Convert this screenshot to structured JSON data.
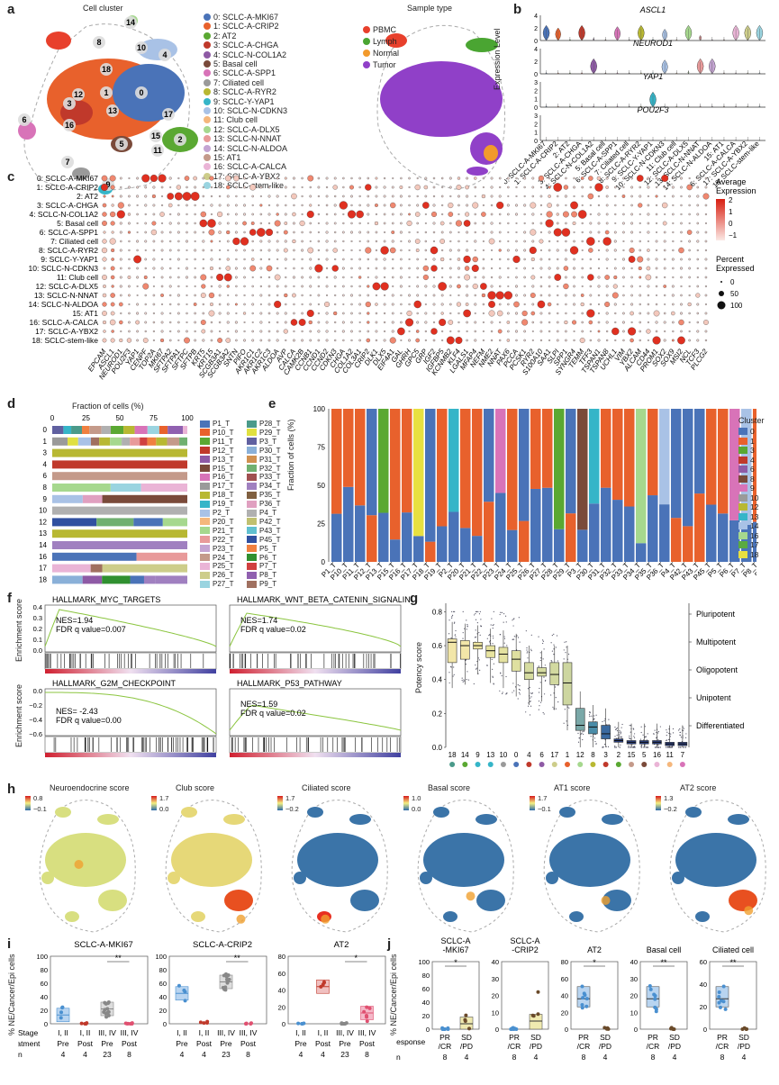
{
  "panels": {
    "a": {
      "letter": "a",
      "title_cluster": "Cell cluster",
      "title_sample": "Sample type",
      "clusters": [
        {
          "label": "0: SCLC-A-MKI67",
          "color": "#4a73b8"
        },
        {
          "label": "1: SCLC-A-CRIP2",
          "color": "#e8612c"
        },
        {
          "label": "2: AT2",
          "color": "#5aa832"
        },
        {
          "label": "3: SCLC-A-CHGA",
          "color": "#c0392b"
        },
        {
          "label": "4: SCLC-N-COL1A2",
          "color": "#8e5aa5"
        },
        {
          "label": "5: Basal cell",
          "color": "#7a4a3a"
        },
        {
          "label": "6: SCLC-A-SPP1",
          "color": "#d873b8"
        },
        {
          "label": "7: Ciliated cell",
          "color": "#9a9a9a"
        },
        {
          "label": "8: SCLC-A-RYR2",
          "color": "#b8b832"
        },
        {
          "label": "9: SCLC-Y-YAP1",
          "color": "#35b5c8"
        },
        {
          "label": "10: SCLC-N-CDKN3",
          "color": "#a9c2e6"
        },
        {
          "label": "11: Club cell",
          "color": "#f5b77c"
        },
        {
          "label": "12: SCLC-A-DLX5",
          "color": "#a6d88e"
        },
        {
          "label": "13: SCLC-N-NNAT",
          "color": "#e89a9a"
        },
        {
          "label": "14: SCLC-N-ALDOA",
          "color": "#c4a4d2"
        },
        {
          "label": "15: AT1",
          "color": "#c49a8a"
        },
        {
          "label": "16: SCLC-A-CALCA",
          "color": "#eab4d6"
        },
        {
          "label": "17: SCLC-A-YBX2",
          "color": "#cdcd8a"
        },
        {
          "label": "18: SCLC-stem-like",
          "color": "#9ad4e0"
        }
      ],
      "sample_types": [
        {
          "label": "PBMC",
          "color": "#e8402c"
        },
        {
          "label": "Lymph",
          "color": "#4aa532"
        },
        {
          "label": "Normal",
          "color": "#f29a2c"
        },
        {
          "label": "Tumor",
          "color": "#9040c8"
        }
      ],
      "umap_numbers": [
        "14",
        "8",
        "10",
        "4",
        "18",
        "1",
        "0",
        "3",
        "12",
        "16",
        "13",
        "17",
        "6",
        "15",
        "2",
        "11",
        "5",
        "7",
        "9"
      ]
    },
    "b": {
      "letter": "b",
      "ylabel": "Expression Level",
      "genes": [
        "ASCL1",
        "NEUROD1",
        "YAP1",
        "POU2F3"
      ],
      "categories": [
        "0: SCLC-A-MKI67",
        "1: SCLC-A-CRIP2",
        "2: AT2",
        "3: SCLC-A-CHGA",
        "4: SCLC-N-COL1A2",
        "5: Basal cell",
        "6: SCLC-A-SPP1",
        "7: Ciliated cell",
        "8: SCLC-A-RYR2",
        "9: SCLC-Y-YAP1",
        "10: SCLC-N-CDKN3",
        "11: Club cell",
        "12: SCLC-A-DLX5",
        "13: SCLC-N-NNAT",
        "14: SCLC-N-ALDOA",
        "15: AT1",
        "16: SCLC-A-CALCA",
        "17: SCLC-A-YBX2",
        "18: SCLC-stem-like"
      ],
      "ticks": [
        [
          "0",
          "2",
          "4"
        ],
        [
          "0",
          "2",
          "4"
        ],
        [
          "0",
          "1",
          "2",
          "3"
        ],
        [
          "0",
          "1",
          "2",
          "3"
        ]
      ]
    },
    "c": {
      "letter": "c",
      "rows": [
        "0: SCLC-A-MKI67",
        "1: SCLC-A-CRIP2",
        "2: AT2",
        "3: SCLC-A-CHGA",
        "4: SCLC-N-COL1A2",
        "5: Basal cell",
        "6: SCLC-A-SPP1",
        "7: Ciliated cell",
        "8: SCLC-A-RYR2",
        "9: SCLC-Y-YAP1",
        "10: SCLC-N-CDKN3",
        "11: Club cell",
        "12: SCLC-A-DLX5",
        "13: SCLC-N-NNAT",
        "14: SCLC-N-ALDOA",
        "15: AT1",
        "16: SCLC-A-CALCA",
        "17: SCLC-A-YBX2",
        "18: SCLC-stem-like"
      ],
      "genes": [
        "EPCAM",
        "ASCL1",
        "NEUROD1",
        "POU2F3",
        "YAP1",
        "CENPF",
        "TOP2A",
        "MKI67",
        "SFTPA2",
        "SFTPA1",
        "SFTPC",
        "SFTPB",
        "KRT5",
        "KRT15",
        "SCGB3A1",
        "SCGB3A2",
        "SNTN",
        "PIFO",
        "AKR1C1",
        "AKR1C2",
        "AKR1C3",
        "ALDOA",
        "AVP",
        "CALCA",
        "CAMK2B",
        "CCNB1",
        "CCND1",
        "CCND2",
        "CDKN3",
        "CHGA",
        "COL1A2",
        "COL3A1",
        "CRIP2",
        "DLK1",
        "DLX5",
        "EIF4A1",
        "GAL",
        "GHRH",
        "GPC5",
        "GRP",
        "IGF2",
        "IGFBP5",
        "KCNMB2",
        "KLF4",
        "LGALS1",
        "MFAP4",
        "NEFM",
        "NME2",
        "NNAT",
        "PAX6",
        "PCCA",
        "PCSK1",
        "RYR2",
        "S100A10",
        "SAA1",
        "SLPI",
        "SPP1",
        "SYNGR4",
        "TEMM",
        "TFF3",
        "TSPAN1",
        "TSPAN8",
        "UCHL1",
        "VIM",
        "YBX2",
        "ALCAM",
        "CD44",
        "PROM1",
        "SOX2",
        "SOX9",
        "MSI2",
        "NCL",
        "TCF3",
        "PLCG2"
      ],
      "legend_title_avg": "Average\nExpression",
      "avg_ticks": [
        "2",
        "1",
        "0",
        "−1"
      ],
      "legend_title_pct": "Percent\nExpressed",
      "pct_ticks": [
        "0",
        "50",
        "100"
      ]
    },
    "d": {
      "letter": "d",
      "title": "Fraction of cells (%)",
      "xticks": [
        "0",
        "25",
        "50",
        "75",
        "100"
      ],
      "rows": [
        "0",
        "1",
        "3",
        "4",
        "6",
        "8",
        "9",
        "10",
        "12",
        "13",
        "14",
        "16",
        "17",
        "18"
      ],
      "legend": [
        {
          "label": "P1_T",
          "color": "#4a73b8"
        },
        {
          "label": "P10_T",
          "color": "#e8612c"
        },
        {
          "label": "P11_T",
          "color": "#5aa832"
        },
        {
          "label": "P12_T",
          "color": "#c0392b"
        },
        {
          "label": "P13_T",
          "color": "#8e5aa5"
        },
        {
          "label": "P15_T",
          "color": "#7a4a3a"
        },
        {
          "label": "P16_T",
          "color": "#d873b8"
        },
        {
          "label": "P17_T",
          "color": "#9a9a9a"
        },
        {
          "label": "P18_T",
          "color": "#b8b832"
        },
        {
          "label": "P19_T",
          "color": "#35b5c8"
        },
        {
          "label": "P2_T",
          "color": "#a9c2e6"
        },
        {
          "label": "P20_T",
          "color": "#f5b77c"
        },
        {
          "label": "P21_T",
          "color": "#a6d88e"
        },
        {
          "label": "P22_T",
          "color": "#e89a9a"
        },
        {
          "label": "P23_T",
          "color": "#c4a4d2"
        },
        {
          "label": "P24_T",
          "color": "#c49a8a"
        },
        {
          "label": "P25_T",
          "color": "#eab4d6"
        },
        {
          "label": "P26_T",
          "color": "#cdcd8a"
        },
        {
          "label": "P27_T",
          "color": "#9ad4e0"
        },
        {
          "label": "P28_T",
          "color": "#4a9a8a"
        },
        {
          "label": "P29_T",
          "color": "#e0e040"
        },
        {
          "label": "P3_T",
          "color": "#6060a0"
        },
        {
          "label": "P30_T",
          "color": "#8ab0d8"
        },
        {
          "label": "P31_T",
          "color": "#d09050"
        },
        {
          "label": "P32_T",
          "color": "#70b070"
        },
        {
          "label": "P33_T",
          "color": "#a05050"
        },
        {
          "label": "P34_T",
          "color": "#a080c0"
        },
        {
          "label": "P35_T",
          "color": "#806040"
        },
        {
          "label": "P36_T",
          "color": "#e0a0c0"
        },
        {
          "label": "P4_T",
          "color": "#b0b0b0"
        },
        {
          "label": "P42_T",
          "color": "#c0c070"
        },
        {
          "label": "P43_T",
          "color": "#60c0d0"
        },
        {
          "label": "P45_T",
          "color": "#3050a0"
        },
        {
          "label": "P5_T",
          "color": "#f08040"
        },
        {
          "label": "P6_T",
          "color": "#309030"
        },
        {
          "label": "P7_T",
          "color": "#d04040"
        },
        {
          "label": "P8_T",
          "color": "#9060b0"
        },
        {
          "label": "P9_T",
          "color": "#a07060"
        }
      ]
    },
    "e": {
      "letter": "e",
      "ylabel": "Fraction of cells (%)",
      "yticks": [
        "0",
        "25",
        "50",
        "75",
        "100"
      ],
      "samples": [
        "P1_T",
        "P10_T",
        "P11_T",
        "P12_T",
        "P13_T",
        "P15_T",
        "P16_T",
        "P17_T",
        "P18_T",
        "P19_T",
        "P2_T",
        "P20_T",
        "P21_T",
        "P22_T",
        "P23_T",
        "P24_T",
        "P25_T",
        "P26_T",
        "P27_T",
        "P28_T",
        "P29_T",
        "P3_T",
        "P30_T",
        "P31_T",
        "P32_T",
        "P33_T",
        "P34_T",
        "P35_T",
        "P36_T",
        "P4_T",
        "P42_T",
        "P43_T",
        "P45_T",
        "P5_T",
        "P6_T",
        "P7_T",
        "P8_T",
        "P9_T"
      ],
      "legend_title": "Cluster",
      "legend": [
        {
          "label": "0",
          "color": "#4a73b8"
        },
        {
          "label": "1",
          "color": "#e8612c"
        },
        {
          "label": "3",
          "color": "#5aa832"
        },
        {
          "label": "4",
          "color": "#c0392b"
        },
        {
          "label": "6",
          "color": "#8e5aa5"
        },
        {
          "label": "8",
          "color": "#7a4a3a"
        },
        {
          "label": "9",
          "color": "#d873b8"
        },
        {
          "label": "10",
          "color": "#9a9a9a"
        },
        {
          "label": "12",
          "color": "#b8b832"
        },
        {
          "label": "13",
          "color": "#35b5c8"
        },
        {
          "label": "14",
          "color": "#a9c2e6"
        },
        {
          "label": "16",
          "color": "#a6d88e"
        },
        {
          "label": "17",
          "color": "#5aaa40"
        },
        {
          "label": "18",
          "color": "#e8e040"
        }
      ]
    },
    "f": {
      "letter": "f",
      "ylabel": "Enrichment score",
      "plots": [
        {
          "title": "HALLMARK_MYC_TARGETS",
          "nes": "NES=1.94",
          "fdr": "FDR q value=0.007",
          "yticks": [
            "0.4",
            "0.3",
            "0.2",
            "0.1",
            "0.0"
          ]
        },
        {
          "title": "HALLMARK_WNT_BETA_CATENIN_SIGNALING",
          "nes": "NES=1.74",
          "fdr": "FDR q value=0.02",
          "yticks": []
        },
        {
          "title": "HALLMARK_G2M_CHECKPOINT",
          "nes": "NES= -2.43",
          "fdr": "FDR q value=0.00",
          "yticks": [
            "0.0",
            "−0.2",
            "−0.4",
            "−0.6"
          ]
        },
        {
          "title": "HALLMARK_P53_PATHWAY",
          "nes": "NES=1.59",
          "fdr": "FDR q value=0.02",
          "yticks": []
        }
      ]
    },
    "g": {
      "letter": "g",
      "ylabel": "Potency score",
      "yticks": [
        "0.0",
        "0.2",
        "0.4",
        "0.6",
        "0.8"
      ],
      "categories": [
        "18",
        "14",
        "9",
        "13",
        "10",
        "0",
        "4",
        "6",
        "17",
        "1",
        "12",
        "8",
        "3",
        "2",
        "15",
        "5",
        "16",
        "11",
        "7"
      ],
      "medians": [
        0.62,
        0.6,
        0.6,
        0.57,
        0.55,
        0.52,
        0.44,
        0.44,
        0.43,
        0.38,
        0.13,
        0.12,
        0.08,
        0.04,
        0.03,
        0.03,
        0.03,
        0.02,
        0.02
      ],
      "q1": [
        0.5,
        0.52,
        0.58,
        0.53,
        0.5,
        0.45,
        0.4,
        0.42,
        0.37,
        0.25,
        0.1,
        0.08,
        0.05,
        0.03,
        0.02,
        0.02,
        0.02,
        0.01,
        0.01
      ],
      "q3": [
        0.64,
        0.63,
        0.62,
        0.6,
        0.59,
        0.57,
        0.5,
        0.47,
        0.5,
        0.5,
        0.23,
        0.15,
        0.13,
        0.05,
        0.04,
        0.04,
        0.04,
        0.03,
        0.03
      ],
      "box_colors": [
        "#f2e6a8",
        "#f2e6a8",
        "#eee5a0",
        "#e8e4a0",
        "#e4e2a0",
        "#dfe0a0",
        "#d6dca0",
        "#d6dca0",
        "#d2d9a0",
        "#cdd6a0",
        "#7aa8a8",
        "#4a8ca8",
        "#3a6aa0",
        "#2a3f80",
        "#2a3f80",
        "#2a3f80",
        "#2a3f80",
        "#2a3f80",
        "#2a3f80"
      ],
      "dot_colors": [
        "#4a9a8a",
        "#5aa832",
        "#35b5c8",
        "#35b5c8",
        "#9a9a9a",
        "#4a73b8",
        "#c0392b",
        "#8e5aa5",
        "#cdcd8a",
        "#e8612c",
        "#a6d88e",
        "#b8b832",
        "#c0392b",
        "#5aa832",
        "#c49a8a",
        "#7a4a3a",
        "#eab4d6",
        "#f5b77c",
        "#d873b8"
      ],
      "potency_labels": [
        "Pluripotent",
        "Multipotent",
        "Oligopotent",
        "Unipotent",
        "Differentiated"
      ]
    },
    "h": {
      "letter": "h",
      "maps": [
        {
          "title": "Neuroendocrine score",
          "max": "0.8",
          "min": "−0.1"
        },
        {
          "title": "Club score",
          "max": "1.7",
          "min": "0.0"
        },
        {
          "title": "Ciliated score",
          "max": "1.7",
          "min": "−0.2"
        },
        {
          "title": "Basal score",
          "max": "1.0",
          "min": "0.0"
        },
        {
          "title": "AT1 score",
          "max": "1.7",
          "min": "−0.1"
        },
        {
          "title": "AT2 score",
          "max": "1.3",
          "min": "−0.2"
        }
      ]
    },
    "i": {
      "letter": "i",
      "ylabel": "% NE/Cancer/Epi cells",
      "plots": [
        {
          "title": "SCLC-A-MKI67",
          "sig": "**",
          "yticks": [
            "0",
            "20",
            "40",
            "60",
            "80",
            "100"
          ]
        },
        {
          "title": "SCLC-A-CRIP2",
          "sig": "**",
          "yticks": [
            "0",
            "20",
            "40",
            "60",
            "80",
            "100"
          ]
        },
        {
          "title": "AT2",
          "sig": "*",
          "yticks": [
            "0",
            "20",
            "40",
            "60",
            "80"
          ]
        }
      ],
      "stage_label": "Stage",
      "treatment_label": "Treatment",
      "n_label": "n",
      "stages": [
        "I, II",
        "I, II",
        "III, IV",
        "III, IV"
      ],
      "treatments": [
        "Pre",
        "Post",
        "Pre",
        "Post"
      ],
      "ns": [
        "4",
        "4",
        "23",
        "8"
      ]
    },
    "j": {
      "letter": "j",
      "ylabel": "% NE/Cancer/Epi cells",
      "plots": [
        {
          "title": "SCLC-A\n-MKI67",
          "sig": "*",
          "yticks": [
            "0",
            "20",
            "40",
            "60",
            "80",
            "100"
          ]
        },
        {
          "title": "SCLC-A\n-CRIP2",
          "sig": "",
          "yticks": [
            "0",
            "10",
            "20",
            "30",
            "40"
          ]
        },
        {
          "title": "AT2",
          "sig": "*",
          "yticks": [
            "0",
            "20",
            "40",
            "60",
            "80"
          ]
        },
        {
          "title": "Basal cell",
          "sig": "**",
          "yticks": [
            "0",
            "10",
            "20",
            "30",
            "40"
          ]
        },
        {
          "title": "Ciliated cell",
          "sig": "**",
          "yticks": [
            "0",
            "20",
            "40",
            "60"
          ]
        }
      ],
      "response_label": "Response",
      "n_label": "n",
      "responses_top": [
        "PR",
        "SD"
      ],
      "responses_bot": [
        "/CR",
        "/PD"
      ],
      "ns": [
        "8",
        "4"
      ]
    }
  }
}
